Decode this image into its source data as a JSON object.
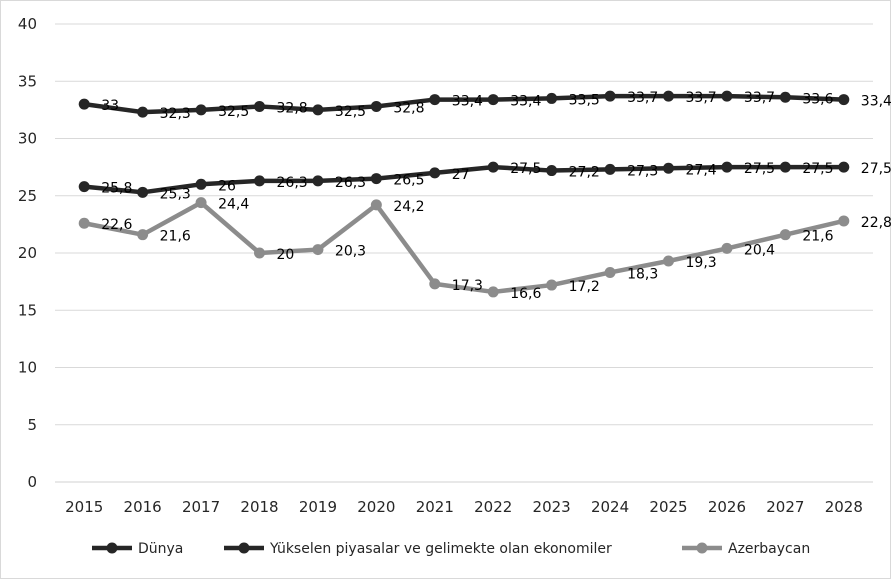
{
  "chart_data": {
    "type": "line",
    "title": "",
    "xlabel": "",
    "ylabel": "",
    "categories": [
      "2015",
      "2016",
      "2017",
      "2018",
      "2019",
      "2020",
      "2021",
      "2022",
      "2023",
      "2024",
      "2025",
      "2026",
      "2027",
      "2028"
    ],
    "ylim": [
      0,
      40
    ],
    "yticks": [
      0,
      5,
      10,
      15,
      20,
      25,
      30,
      35,
      40
    ],
    "grid": "horizontal",
    "legend_position": "bottom",
    "series": [
      {
        "name": "Dünya",
        "color": "#262626",
        "values": [
          33,
          32.3,
          32.5,
          32.8,
          32.5,
          32.8,
          33.4,
          33.4,
          33.5,
          33.7,
          33.7,
          33.7,
          33.6,
          33.4
        ],
        "labels": [
          "33",
          "32,3",
          "32,5",
          "32,8",
          "32,5",
          "32,8",
          "33,4",
          "33,4",
          "33,5",
          "33,7",
          "33,7",
          "33,7",
          "33,6",
          "33,4"
        ]
      },
      {
        "name": "Yükselen piyasalar ve gelimekte olan ekonomiler",
        "color": "#262626",
        "values": [
          25.8,
          25.3,
          26,
          26.3,
          26.3,
          26.5,
          27,
          27.5,
          27.2,
          27.3,
          27.4,
          27.5,
          27.5,
          27.5
        ],
        "labels": [
          "25,8",
          "25,3",
          "26",
          "26,3",
          "26,3",
          "26,5",
          "27",
          "27,5",
          "27,2",
          "27,3",
          "27,4",
          "27,5",
          "27,5",
          "27,5"
        ]
      },
      {
        "name": "Azerbaycan",
        "color": "#8c8c8c",
        "values": [
          22.6,
          21.6,
          24.4,
          20,
          20.3,
          24.2,
          17.3,
          16.6,
          17.2,
          18.3,
          19.3,
          20.4,
          21.6,
          22.8
        ],
        "labels": [
          "22,6",
          "21,6",
          "24,4",
          "20",
          "20,3",
          "24,2",
          "17,3",
          "16,6",
          "17,2",
          "18,3",
          "19,3",
          "20,4",
          "21,6",
          "22,8"
        ]
      }
    ]
  }
}
